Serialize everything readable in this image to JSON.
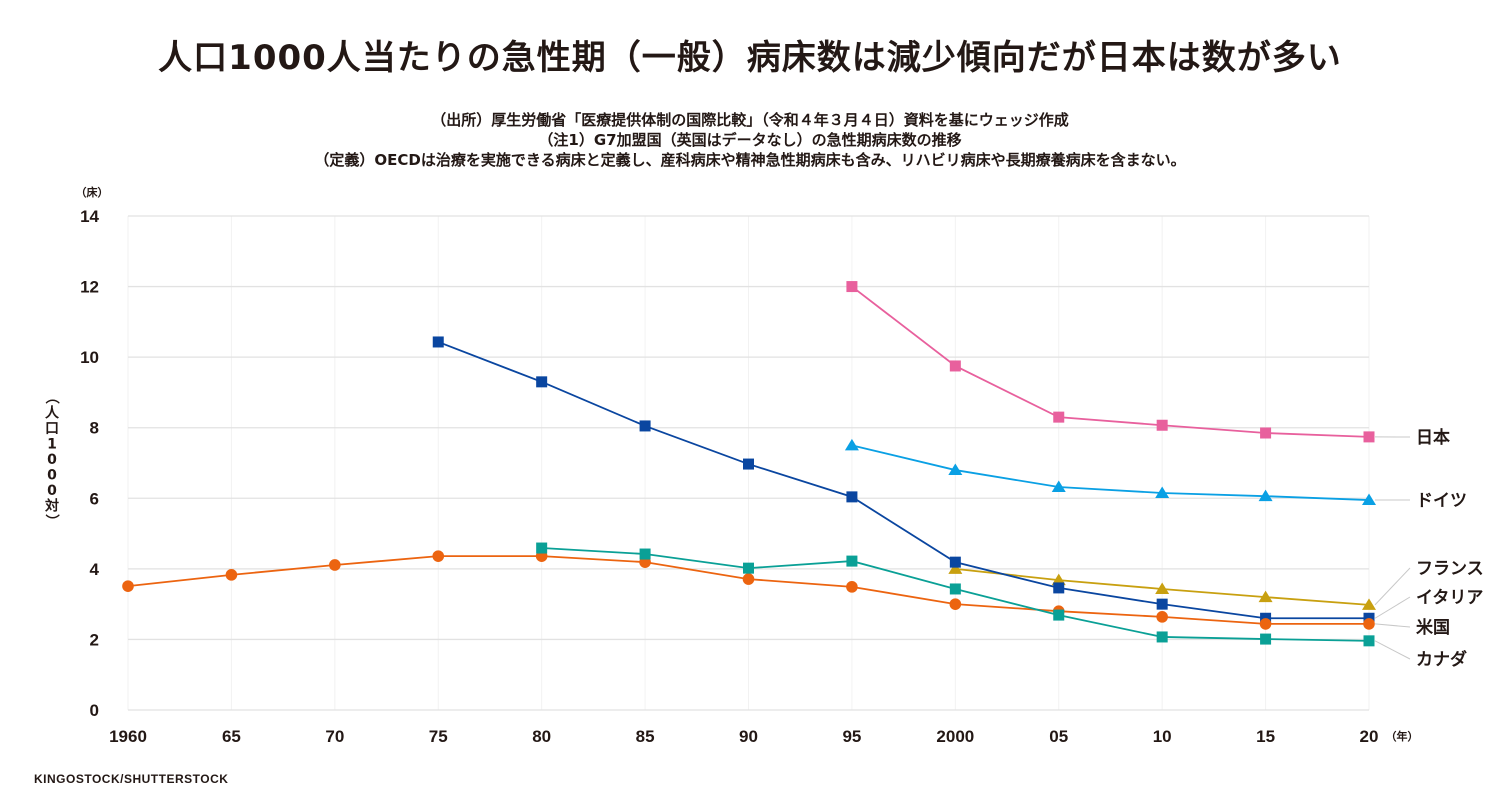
{
  "header": {
    "title": "人口1000人当たりの急性期（一般）病床数は減少傾向だが日本は数が多い",
    "notes": [
      "（出所）厚生労働省「医療提供体制の国際比較」（令和４年３月４日）資料を基にウェッジ作成",
      "（注1）G7加盟国（英国はデータなし）の急性期病床数の推移",
      "（定義）OECDは治療を実施できる病床と定義し、産科病床や精神急性期病床も含み、リハビリ病床や長期療養病床を含まない。"
    ]
  },
  "credit": "KINGOSTOCK/SHUTTERSTOCK",
  "chart_data": {
    "type": "line",
    "title": "人口1000人当たりの急性期（一般）病床数は減少傾向だが日本は数が多い",
    "xlabel": "（年）",
    "ylabel": "（人口1000対）",
    "yunit": "（床）",
    "x": [
      1960,
      1965,
      1970,
      1975,
      1980,
      1985,
      1990,
      1995,
      2000,
      2005,
      2010,
      2015,
      2020
    ],
    "xtick_labels": [
      "1960",
      "65",
      "70",
      "75",
      "80",
      "85",
      "90",
      "95",
      "2000",
      "05",
      "10",
      "15",
      "20"
    ],
    "ylim": [
      0,
      14
    ],
    "yticks": [
      0,
      2,
      4,
      6,
      8,
      10,
      12,
      14
    ],
    "grid": true,
    "legend_placement": "right (labels at line ends)",
    "series": [
      {
        "name": "日本",
        "color": "#e8609d",
        "marker": "square",
        "values": [
          null,
          null,
          null,
          null,
          null,
          null,
          null,
          12.0,
          9.75,
          8.3,
          8.07,
          7.85,
          7.74
        ]
      },
      {
        "name": "ドイツ",
        "color": "#0aa0e4",
        "marker": "triangle",
        "values": [
          null,
          null,
          null,
          null,
          null,
          null,
          null,
          7.5,
          6.8,
          6.32,
          6.15,
          6.06,
          5.95
        ]
      },
      {
        "name": "フランス",
        "color": "#c8a010",
        "marker": "triangle",
        "values": [
          null,
          null,
          null,
          null,
          null,
          null,
          null,
          null,
          4.0,
          3.68,
          3.43,
          3.2,
          2.98
        ]
      },
      {
        "name": "イタリア",
        "color": "#0a46a0",
        "marker": "square",
        "values": [
          null,
          null,
          null,
          10.43,
          9.3,
          8.05,
          6.97,
          6.04,
          4.19,
          3.46,
          3.0,
          2.6,
          2.6
        ]
      },
      {
        "name": "米国",
        "color": "#ec6410",
        "marker": "circle",
        "values": [
          3.51,
          3.83,
          4.11,
          4.36,
          4.36,
          4.19,
          3.71,
          3.49,
          3.0,
          2.8,
          2.64,
          2.44,
          2.44
        ]
      },
      {
        "name": "カナダ",
        "color": "#0aa096",
        "marker": "square",
        "values": [
          null,
          null,
          null,
          null,
          4.59,
          4.42,
          4.02,
          4.22,
          3.43,
          2.69,
          2.07,
          2.01,
          1.96
        ]
      }
    ]
  }
}
